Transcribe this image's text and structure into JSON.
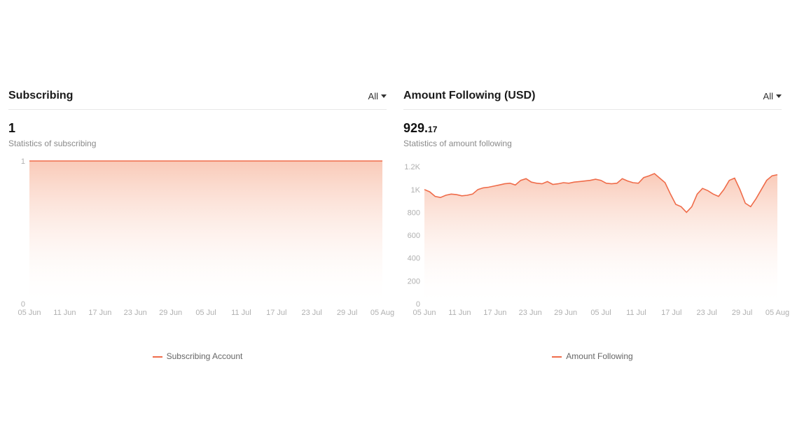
{
  "colors": {
    "line": "#ef6c4a",
    "fill_top": "#f9c7b4",
    "fill_bottom": "#ffffff",
    "axis_text": "#b0b0b0",
    "grid": "#e8e8e8",
    "text": "#1a1a1a",
    "muted": "#8a8a8a"
  },
  "panels": [
    {
      "key": "subscribing",
      "title": "Subscribing",
      "filter_label": "All",
      "big_value": "1",
      "big_frac": "",
      "subtext": "Statistics of subscribing",
      "legend_label": "Subscribing Account",
      "chart": {
        "type": "area",
        "x_labels": [
          "05 Jun",
          "11 Jun",
          "17 Jun",
          "23 Jun",
          "29 Jun",
          "05 Jul",
          "11 Jul",
          "17 Jul",
          "23 Jul",
          "29 Jul",
          "05 Aug"
        ],
        "y_ticks": [
          0,
          1
        ],
        "y_tick_labels": [
          "0",
          "1"
        ],
        "ylim": [
          0,
          1
        ],
        "values": [
          1,
          1,
          1,
          1,
          1,
          1,
          1,
          1,
          1,
          1,
          1,
          1,
          1,
          1,
          1,
          1,
          1,
          1,
          1,
          1,
          1,
          1,
          1,
          1,
          1,
          1,
          1,
          1,
          1,
          1,
          1,
          1,
          1,
          1,
          1,
          1,
          1,
          1,
          1,
          1,
          1,
          1,
          1,
          1,
          1,
          1,
          1,
          1,
          1,
          1,
          1,
          1,
          1,
          1,
          1,
          1,
          1,
          1,
          1,
          1,
          1,
          1,
          1,
          1,
          1,
          1,
          1
        ]
      }
    },
    {
      "key": "amount",
      "title": "Amount Following (USD)",
      "filter_label": "All",
      "big_value": "929.",
      "big_frac": "17",
      "subtext": "Statistics of amount following",
      "legend_label": "Amount Following",
      "chart": {
        "type": "area",
        "x_labels": [
          "05 Jun",
          "11 Jun",
          "17 Jun",
          "23 Jun",
          "29 Jun",
          "05 Jul",
          "11 Jul",
          "17 Jul",
          "23 Jul",
          "29 Jul",
          "05 Aug"
        ],
        "y_ticks": [
          0,
          200,
          400,
          600,
          800,
          1000,
          1200
        ],
        "y_tick_labels": [
          "0",
          "200",
          "400",
          "600",
          "800",
          "1K",
          "1.2K"
        ],
        "ylim": [
          0,
          1250
        ],
        "values": [
          1000,
          980,
          940,
          930,
          950,
          960,
          955,
          945,
          950,
          960,
          1000,
          1015,
          1020,
          1030,
          1040,
          1050,
          1055,
          1040,
          1080,
          1095,
          1065,
          1055,
          1050,
          1070,
          1045,
          1050,
          1060,
          1055,
          1065,
          1070,
          1075,
          1080,
          1090,
          1080,
          1055,
          1050,
          1055,
          1095,
          1075,
          1060,
          1055,
          1105,
          1120,
          1140,
          1100,
          1060,
          960,
          870,
          850,
          800,
          850,
          960,
          1010,
          990,
          960,
          940,
          1000,
          1080,
          1100,
          1000,
          880,
          850,
          920,
          1000,
          1080,
          1120,
          1130
        ]
      }
    }
  ]
}
